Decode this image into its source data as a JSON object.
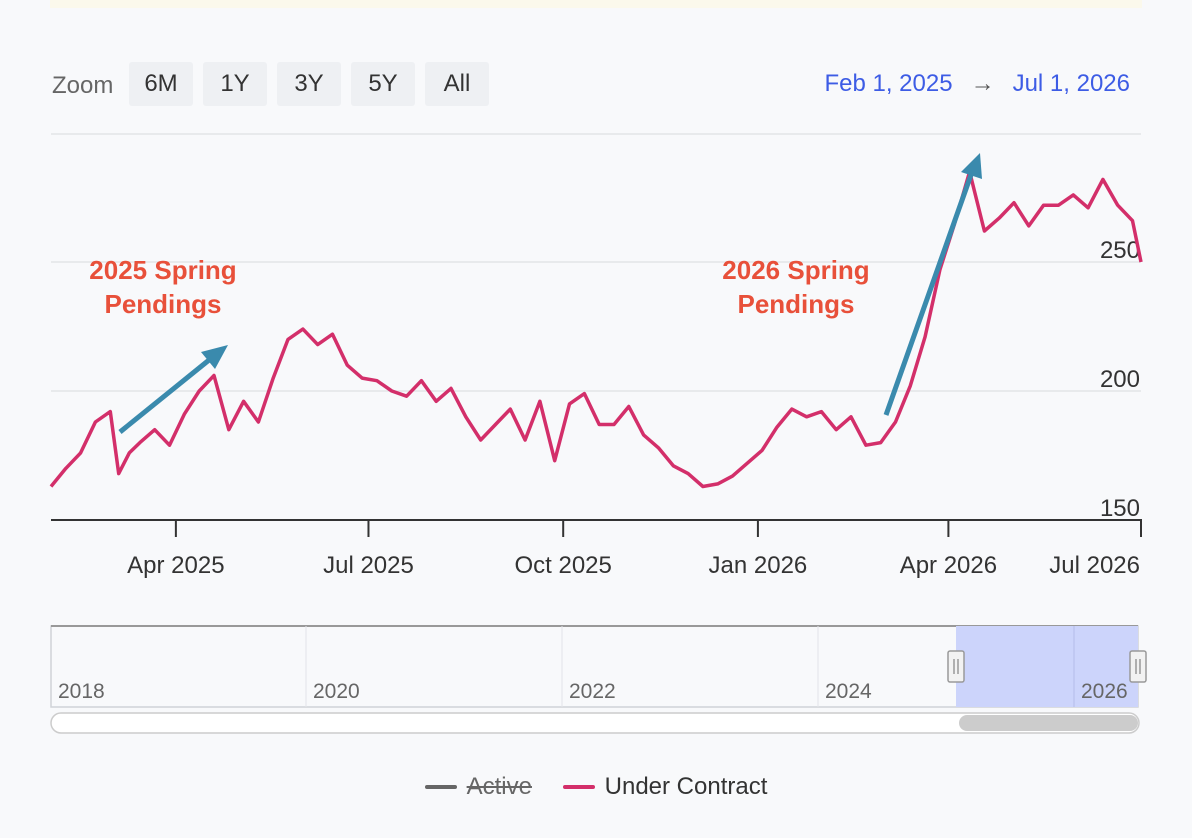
{
  "toolbar": {
    "zoom_label": "Zoom",
    "buttons": [
      "6M",
      "1Y",
      "3Y",
      "5Y",
      "All"
    ],
    "range_from": "Feb 1, 2025",
    "range_arrow": "→",
    "range_to": "Jul 1, 2026"
  },
  "annotations": {
    "left_line1": "2025 Spring",
    "left_line2": "Pendings",
    "right_line1": "2026 Spring",
    "right_line2": "Pendings"
  },
  "navigator": {
    "years": [
      "2018",
      "2020",
      "2022",
      "2024",
      "2026"
    ],
    "selection": [
      "2025-02-01",
      "2026-07-01"
    ]
  },
  "legend": [
    {
      "label": "Active",
      "color": "#666666",
      "hidden": true
    },
    {
      "label": "Under Contract",
      "color": "#d32f6a",
      "hidden": false
    }
  ],
  "colors": {
    "series": "#d32f6a",
    "annotation_text": "#e8503a",
    "arrow": "#3a8aad",
    "selection": "#ccd4fb"
  },
  "chart_data": {
    "type": "line",
    "title": "",
    "xlabel": "",
    "ylabel": "",
    "x_range": [
      "2025-02-01",
      "2026-07-01"
    ],
    "ylim": [
      150,
      300
    ],
    "y_ticks": [
      "150",
      "200",
      "250"
    ],
    "x_ticks": [
      "Apr 2025",
      "Jul 2025",
      "Oct 2025",
      "Jan 2026",
      "Apr 2026",
      "Jul 2026"
    ],
    "grid": true,
    "series": [
      {
        "name": "Under Contract",
        "x": [
          "2025-02-01",
          "2025-02-08",
          "2025-02-15",
          "2025-02-22",
          "2025-03-01",
          "2025-03-05",
          "2025-03-10",
          "2025-03-15",
          "2025-03-22",
          "2025-03-29",
          "2025-04-05",
          "2025-04-12",
          "2025-04-19",
          "2025-04-26",
          "2025-05-03",
          "2025-05-10",
          "2025-05-17",
          "2025-05-24",
          "2025-05-31",
          "2025-06-07",
          "2025-06-14",
          "2025-06-21",
          "2025-06-28",
          "2025-07-05",
          "2025-07-12",
          "2025-07-19",
          "2025-07-26",
          "2025-08-02",
          "2025-08-09",
          "2025-08-16",
          "2025-08-23",
          "2025-08-30",
          "2025-09-06",
          "2025-09-13",
          "2025-09-20",
          "2025-09-27",
          "2025-10-04",
          "2025-10-11",
          "2025-10-18",
          "2025-10-25",
          "2025-11-01",
          "2025-11-08",
          "2025-11-15",
          "2025-11-22",
          "2025-11-29",
          "2025-12-06",
          "2025-12-13",
          "2025-12-20",
          "2025-12-27",
          "2026-01-03",
          "2026-01-10",
          "2026-01-17",
          "2026-01-24",
          "2026-01-31",
          "2026-02-07",
          "2026-02-14",
          "2026-02-21",
          "2026-02-28",
          "2026-03-07",
          "2026-03-14",
          "2026-03-21",
          "2026-03-28",
          "2026-04-04",
          "2026-04-11",
          "2026-04-18",
          "2026-04-25",
          "2026-05-02",
          "2026-05-09",
          "2026-05-16",
          "2026-05-23",
          "2026-05-30",
          "2026-06-06",
          "2026-06-13",
          "2026-06-20",
          "2026-06-27",
          "2026-07-01"
        ],
        "values": [
          163,
          170,
          176,
          188,
          192,
          168,
          176,
          180,
          185,
          179,
          191,
          200,
          206,
          185,
          196,
          188,
          205,
          220,
          224,
          218,
          222,
          210,
          205,
          204,
          200,
          198,
          204,
          196,
          201,
          190,
          181,
          187,
          193,
          181,
          196,
          173,
          195,
          199,
          187,
          187,
          194,
          183,
          178,
          171,
          168,
          163,
          164,
          167,
          172,
          177,
          186,
          193,
          190,
          192,
          185,
          190,
          179,
          180,
          188,
          202,
          221,
          247,
          265,
          285,
          262,
          267,
          273,
          264,
          272,
          272,
          276,
          271,
          282,
          272,
          266,
          250
        ]
      }
    ]
  }
}
